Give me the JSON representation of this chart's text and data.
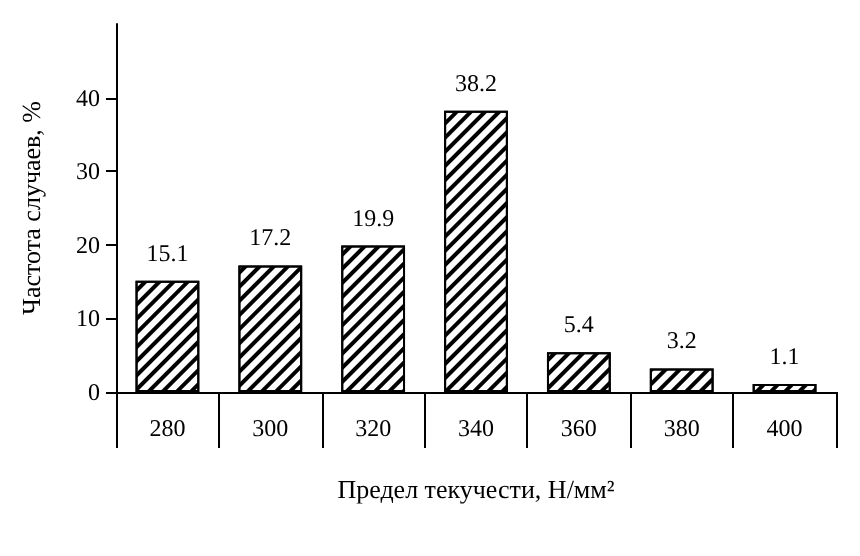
{
  "chart_data": {
    "type": "bar",
    "xlabel": "Предел текучести, Н/мм²",
    "ylabel": "Частота случаев, %",
    "categories": [
      "280",
      "300",
      "320",
      "340",
      "360",
      "380",
      "400"
    ],
    "values": [
      15.1,
      17.2,
      19.9,
      38.2,
      5.4,
      3.2,
      1.1
    ],
    "color": "#ffffff",
    "ylim": [
      0,
      50
    ],
    "yticks": [
      0,
      10,
      20,
      30,
      40
    ],
    "grid": false,
    "data_labels": true
  }
}
